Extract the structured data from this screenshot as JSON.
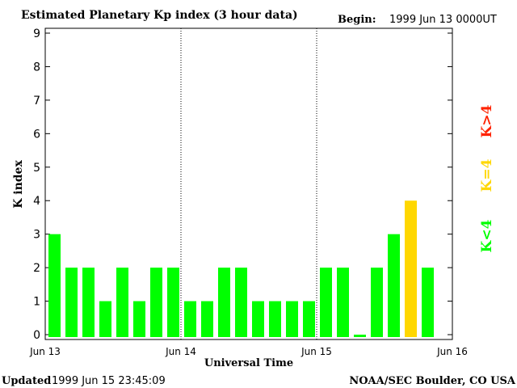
{
  "header": {
    "title": "Estimated Planetary Kp index (3 hour data)",
    "begin_label": "Begin:",
    "begin_value": "1999 Jun 13 0000UT"
  },
  "footer": {
    "updated_label": "Updated",
    "updated_value": "1999 Jun 15 23:45:09",
    "credit": "NOAA/SEC Boulder, CO USA"
  },
  "legend": {
    "low_label": "K<4",
    "mid_label": "K=4",
    "high_label": "K>4",
    "low_color": "#00ff00",
    "mid_color": "#ffd700",
    "high_color": "#ff2200"
  },
  "chart_data": {
    "type": "bar",
    "title": "Estimated Planetary Kp index (3 hour data)",
    "xlabel": "Universal Time",
    "ylabel": "K index",
    "ylim": [
      0,
      9
    ],
    "yticks": [
      "0",
      "1",
      "2",
      "3",
      "4",
      "5",
      "6",
      "7",
      "8",
      "9"
    ],
    "xticks": [
      "Jun 13",
      "Jun 14",
      "Jun 15",
      "Jun 16"
    ],
    "slots_per_day": 8,
    "days": 3,
    "values": [
      3,
      2,
      2,
      1,
      2,
      1,
      2,
      2,
      1,
      1,
      2,
      2,
      1,
      1,
      1,
      1,
      2,
      2,
      0,
      2,
      3,
      4,
      2
    ],
    "grid": "vertical dotted lines at day boundaries"
  }
}
